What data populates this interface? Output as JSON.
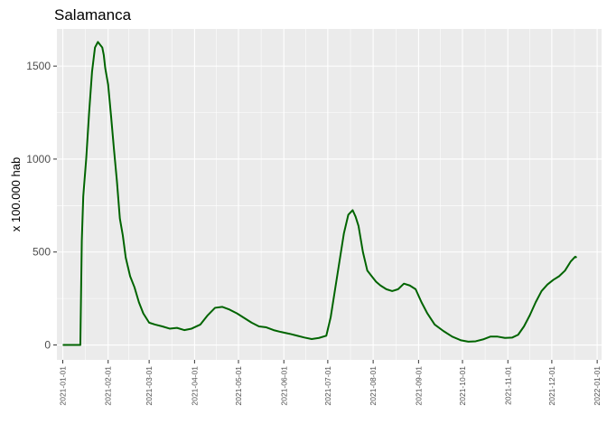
{
  "chart_data": {
    "type": "line",
    "title": "Salamanca",
    "xlabel": "",
    "ylabel": "x 100.000 hab",
    "x_type": "date",
    "xlim": [
      "2020-12-28",
      "2022-01-04"
    ],
    "ylim": [
      -80,
      1700
    ],
    "x_ticks": [
      "2021-01-01",
      "2021-02-01",
      "2021-03-01",
      "2021-04-01",
      "2021-05-01",
      "2021-06-01",
      "2021-07-01",
      "2021-08-01",
      "2021-09-01",
      "2021-10-01",
      "2021-11-01",
      "2021-12-01",
      "2022-01-01"
    ],
    "y_ticks": [
      0,
      500,
      1000,
      1500
    ],
    "y_minor_ticks": [
      250,
      750,
      1250
    ],
    "grid": true,
    "colors": {
      "panel": "#ebebeb",
      "grid": "#ffffff",
      "line": "#006400"
    },
    "series": [
      {
        "x": [
          "2021-01-01",
          "2021-01-09",
          "2021-01-13",
          "2021-01-14",
          "2021-01-15",
          "2021-01-17",
          "2021-01-19",
          "2021-01-21",
          "2021-01-23",
          "2021-01-25",
          "2021-01-26",
          "2021-01-28",
          "2021-01-29",
          "2021-01-30",
          "2021-02-01",
          "2021-02-03",
          "2021-02-05",
          "2021-02-07",
          "2021-02-09",
          "2021-02-11",
          "2021-02-13",
          "2021-02-16",
          "2021-02-19",
          "2021-02-22",
          "2021-02-25",
          "2021-03-01",
          "2021-03-05",
          "2021-03-10",
          "2021-03-15",
          "2021-03-20",
          "2021-03-25",
          "2021-03-30",
          "2021-04-05",
          "2021-04-10",
          "2021-04-15",
          "2021-04-20",
          "2021-04-25",
          "2021-04-30",
          "2021-05-05",
          "2021-05-10",
          "2021-05-15",
          "2021-05-20",
          "2021-05-25",
          "2021-05-30",
          "2021-06-05",
          "2021-06-10",
          "2021-06-15",
          "2021-06-20",
          "2021-06-25",
          "2021-06-30",
          "2021-07-03",
          "2021-07-06",
          "2021-07-09",
          "2021-07-12",
          "2021-07-15",
          "2021-07-18",
          "2021-07-20",
          "2021-07-22",
          "2021-07-25",
          "2021-07-28",
          "2021-07-31",
          "2021-08-03",
          "2021-08-06",
          "2021-08-10",
          "2021-08-14",
          "2021-08-18",
          "2021-08-22",
          "2021-08-26",
          "2021-08-30",
          "2021-09-03",
          "2021-09-07",
          "2021-09-12",
          "2021-09-18",
          "2021-09-24",
          "2021-09-30",
          "2021-10-05",
          "2021-10-10",
          "2021-10-15",
          "2021-10-20",
          "2021-10-25",
          "2021-10-30",
          "2021-11-04",
          "2021-11-08",
          "2021-11-12",
          "2021-11-16",
          "2021-11-20",
          "2021-11-24",
          "2021-11-28",
          "2021-12-02",
          "2021-12-06",
          "2021-12-10",
          "2021-12-14",
          "2021-12-17",
          "2021-12-18"
        ],
        "y": [
          0,
          0,
          0,
          560,
          800,
          1000,
          1250,
          1470,
          1600,
          1630,
          1620,
          1600,
          1560,
          1490,
          1400,
          1230,
          1050,
          880,
          680,
          590,
          470,
          370,
          310,
          230,
          170,
          120,
          110,
          100,
          88,
          92,
          80,
          88,
          110,
          160,
          200,
          205,
          190,
          170,
          145,
          120,
          100,
          95,
          80,
          70,
          60,
          50,
          40,
          32,
          38,
          50,
          150,
          300,
          450,
          600,
          700,
          725,
          690,
          640,
          500,
          400,
          370,
          340,
          320,
          300,
          290,
          300,
          330,
          320,
          300,
          230,
          170,
          110,
          75,
          45,
          25,
          18,
          20,
          30,
          45,
          45,
          38,
          40,
          55,
          100,
          160,
          230,
          290,
          325,
          350,
          370,
          400,
          450,
          475,
          470
        ]
      }
    ]
  }
}
